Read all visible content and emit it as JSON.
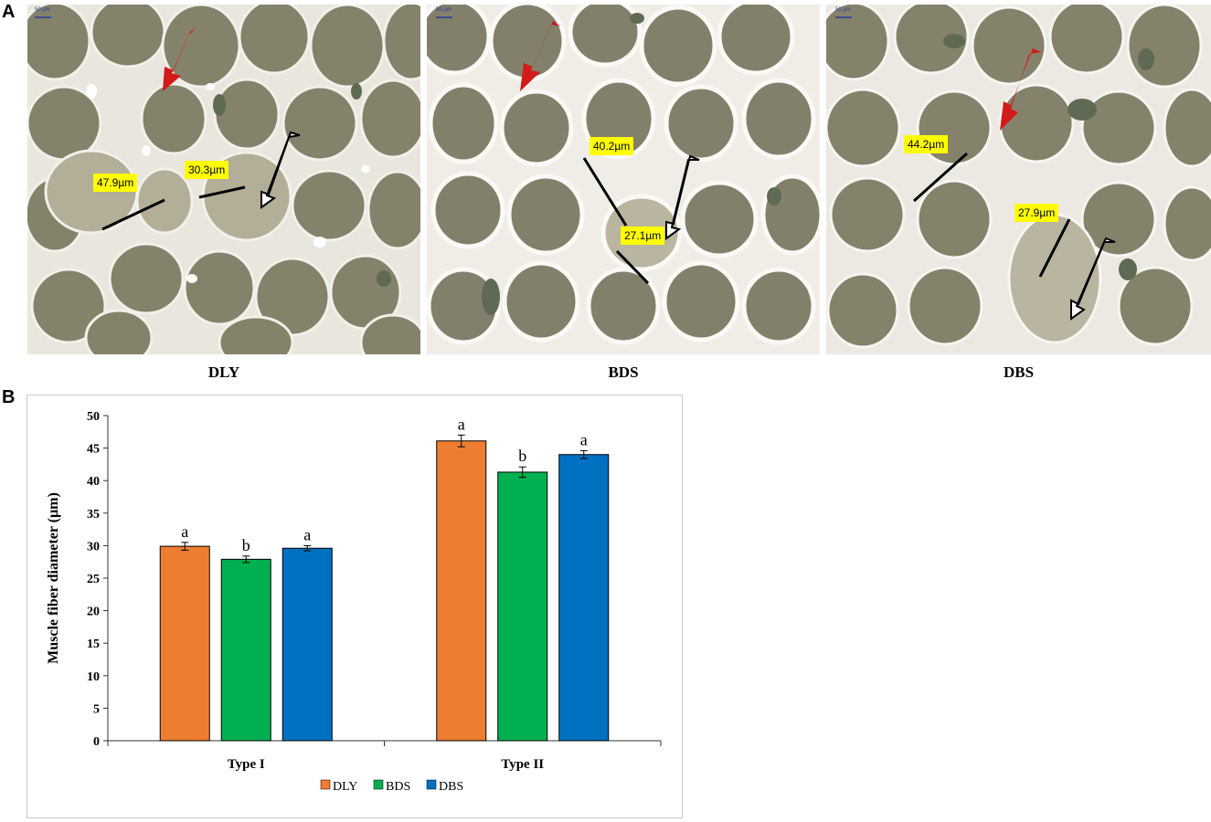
{
  "panels": {
    "a_letter": "A",
    "b_letter": "B"
  },
  "micrographs": [
    {
      "label": "DLY",
      "scale": "50 µm",
      "measurements": [
        "47.9µm",
        "30.3µm"
      ]
    },
    {
      "label": "BDS",
      "scale": "50 µm",
      "measurements": [
        "40.2µm",
        "27.1µm"
      ]
    },
    {
      "label": "DBS",
      "scale": "50 µm",
      "measurements": [
        "44.2µm",
        "27.9µm"
      ]
    }
  ],
  "chart_data": {
    "type": "bar",
    "categories": [
      "Type I",
      "Type II"
    ],
    "series": [
      {
        "name": "DLY",
        "values": [
          29.9,
          46.1
        ],
        "errors": [
          0.6,
          0.9
        ],
        "letters": [
          "a",
          "a"
        ],
        "color": "#ed7d31"
      },
      {
        "name": "BDS",
        "values": [
          27.9,
          41.3
        ],
        "errors": [
          0.5,
          0.8
        ],
        "letters": [
          "b",
          "b"
        ],
        "color": "#00b050"
      },
      {
        "name": "DBS",
        "values": [
          29.6,
          44.0
        ],
        "errors": [
          0.4,
          0.6
        ],
        "letters": [
          "a",
          "a"
        ],
        "color": "#0070c0"
      }
    ],
    "ylabel": "Muscle fiber diameter (µm)",
    "xlabel": "",
    "ylim": [
      0,
      50
    ],
    "yticks": [
      0,
      5,
      10,
      15,
      20,
      25,
      30,
      35,
      40,
      45,
      50
    ],
    "grid": false,
    "legend_position": "bottom"
  }
}
